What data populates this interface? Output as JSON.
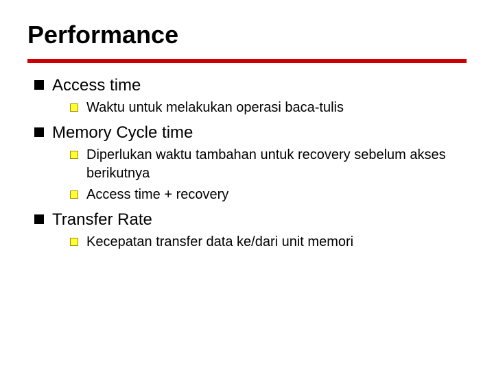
{
  "slide": {
    "title": "Performance",
    "title_fontsize": 36,
    "title_fontweight": 900,
    "rule_color": "#cc0000",
    "rule_height": 6,
    "background_color": "#ffffff",
    "text_color": "#000000",
    "bullet_l1": {
      "shape": "square",
      "color": "#000000",
      "size": 14,
      "fontsize": 24
    },
    "bullet_l2": {
      "shape": "square",
      "fill": "#ffff33",
      "border": "#9a8b00",
      "size": 12,
      "fontsize": 20
    },
    "items": [
      {
        "label": "Access time",
        "sub": [
          "Waktu untuk melakukan operasi baca-tulis"
        ]
      },
      {
        "label": "Memory Cycle time",
        "sub": [
          "Diperlukan waktu tambahan untuk recovery sebelum akses berikutnya",
          "Access time + recovery"
        ]
      },
      {
        "label": "Transfer Rate",
        "sub": [
          "Kecepatan transfer data ke/dari unit memori"
        ]
      }
    ]
  }
}
